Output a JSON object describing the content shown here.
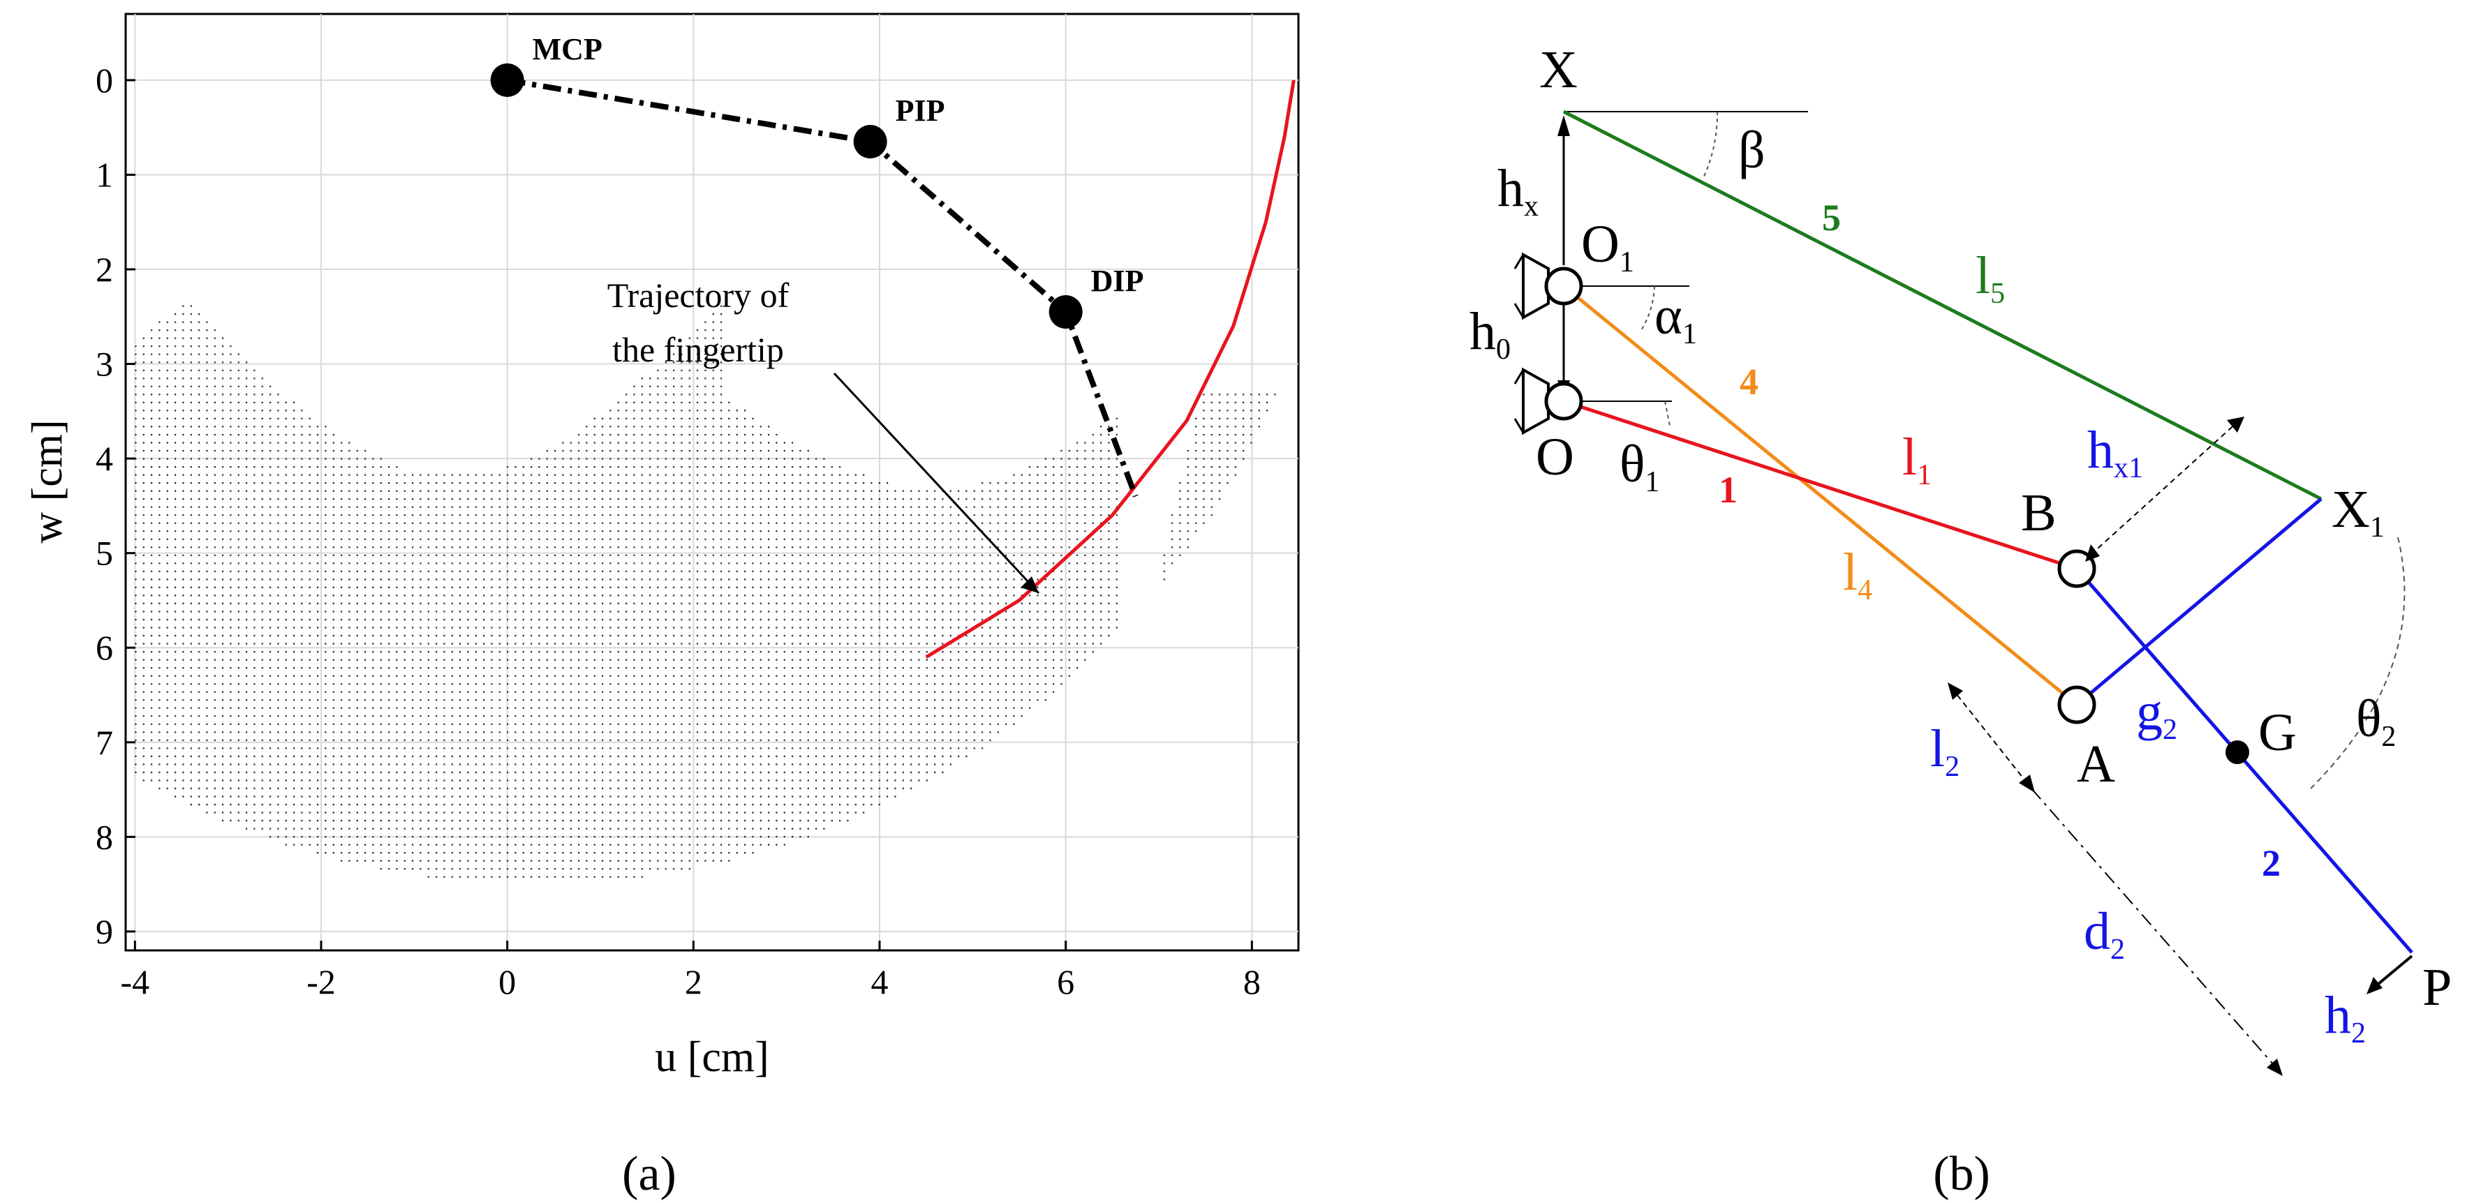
{
  "figure": {
    "panel_a_caption": "(a)",
    "panel_b_caption": "(b)"
  },
  "panel_a": {
    "chart_data": {
      "type": "scatter",
      "xlabel": "u [cm]",
      "ylabel": "w [cm]",
      "xlim": [
        -4.1,
        8.5
      ],
      "ylim": [
        9.2,
        -0.7
      ],
      "y_axis_inverted": true,
      "grid": true,
      "xticks": [
        "-4",
        "-2",
        "0",
        "2",
        "4",
        "6",
        "8"
      ],
      "yticks": [
        "0",
        "1",
        "2",
        "3",
        "4",
        "5",
        "6",
        "7",
        "8",
        "9"
      ],
      "series": [
        {
          "name": "finger",
          "style": "dash-dot black with joint markers",
          "points": [
            {
              "label": "MCP",
              "u": 0.0,
              "w": 0.0
            },
            {
              "label": "PIP",
              "u": 3.9,
              "w": 0.65
            },
            {
              "label": "DIP",
              "u": 6.0,
              "w": 2.45
            },
            {
              "label": "",
              "u": 6.75,
              "w": 4.4
            }
          ]
        },
        {
          "name": "trajectory",
          "style": "solid red",
          "points": [
            {
              "u": 4.5,
              "w": 6.1
            },
            {
              "u": 5.5,
              "w": 5.5
            },
            {
              "u": 6.5,
              "w": 4.6
            },
            {
              "u": 7.3,
              "w": 3.6
            },
            {
              "u": 7.8,
              "w": 2.6
            },
            {
              "u": 8.15,
              "w": 1.5
            },
            {
              "u": 8.35,
              "w": 0.6
            },
            {
              "u": 8.45,
              "w": 0.0
            }
          ]
        }
      ],
      "workspace_region": "dense dotted region (reachable workspace)",
      "annotation": {
        "line1": "Trajectory of",
        "line2": "the fingertip"
      }
    }
  },
  "panel_b": {
    "labels": {
      "X": "X",
      "beta": "β",
      "hx": "h",
      "hx_sub": "x",
      "O1": "O",
      "O1_sub": "1",
      "alpha1": "α",
      "alpha1_sub": "1",
      "h0": "h",
      "h0_sub": "0",
      "O": "O",
      "theta1": "θ",
      "theta1_sub": "1",
      "num5": "5",
      "l5": "l",
      "l5_sub": "5",
      "num4": "4",
      "num1": "1",
      "l1": "l",
      "l1_sub": "1",
      "hx1": "h",
      "hx1_sub": "x1",
      "X1": "X",
      "X1_sub": "1",
      "B": "B",
      "l4": "l",
      "l4_sub": "4",
      "A": "A",
      "g2": "g",
      "g2_sub": "2",
      "G": "G",
      "theta2": "θ",
      "theta2_sub": "2",
      "l2": "l",
      "l2_sub": "2",
      "num2": "2",
      "d2": "d",
      "d2_sub": "2",
      "h2": "h",
      "h2_sub": "2",
      "P": "P"
    },
    "colors": {
      "link5": "#1e7b1e",
      "link4": "#f28c1a",
      "link1": "#e8141e",
      "link2": "#1414e6",
      "annot": "#000000"
    }
  }
}
